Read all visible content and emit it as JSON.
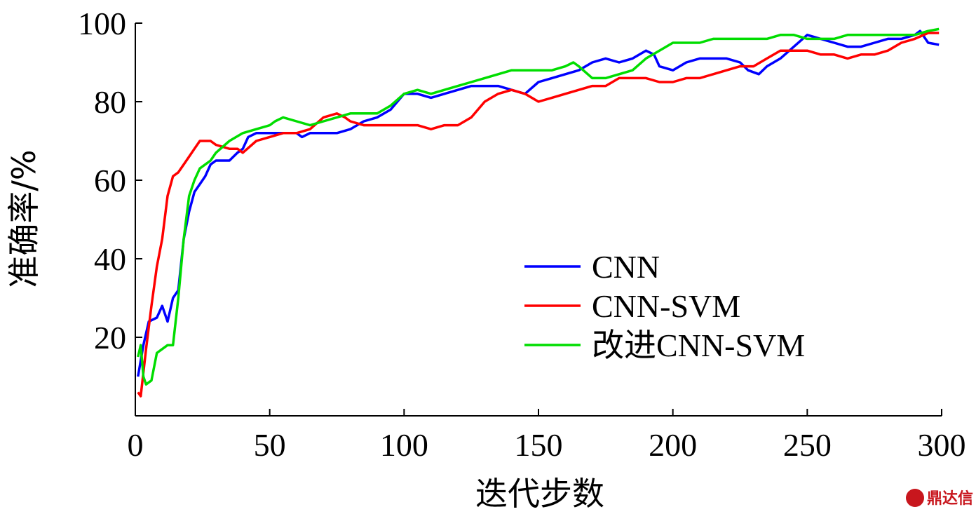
{
  "chart_data": {
    "type": "line",
    "xlabel": "迭代步数",
    "ylabel": "准确率/%",
    "xlim": [
      0,
      300
    ],
    "ylim": [
      0,
      100
    ],
    "xticks": [
      0,
      50,
      100,
      150,
      200,
      250,
      300
    ],
    "yticks": [
      20,
      40,
      60,
      80,
      100
    ],
    "grid": false,
    "legend_position": "bottom-right",
    "series": [
      {
        "name": "CNN",
        "color": "#0000ff",
        "points": [
          [
            1,
            10
          ],
          [
            3,
            18
          ],
          [
            5,
            24
          ],
          [
            8,
            25
          ],
          [
            10,
            28
          ],
          [
            12,
            24
          ],
          [
            14,
            30
          ],
          [
            16,
            32
          ],
          [
            18,
            45
          ],
          [
            20,
            52
          ],
          [
            22,
            57
          ],
          [
            24,
            59
          ],
          [
            26,
            61
          ],
          [
            28,
            64
          ],
          [
            30,
            65
          ],
          [
            35,
            65
          ],
          [
            38,
            67
          ],
          [
            40,
            68
          ],
          [
            42,
            71
          ],
          [
            45,
            72
          ],
          [
            50,
            72
          ],
          [
            55,
            72
          ],
          [
            60,
            72
          ],
          [
            62,
            71
          ],
          [
            65,
            72
          ],
          [
            70,
            72
          ],
          [
            75,
            72
          ],
          [
            80,
            73
          ],
          [
            85,
            75
          ],
          [
            90,
            76
          ],
          [
            95,
            78
          ],
          [
            100,
            82
          ],
          [
            105,
            82
          ],
          [
            110,
            81
          ],
          [
            115,
            82
          ],
          [
            120,
            83
          ],
          [
            125,
            84
          ],
          [
            130,
            84
          ],
          [
            135,
            84
          ],
          [
            140,
            83
          ],
          [
            145,
            82
          ],
          [
            150,
            85
          ],
          [
            155,
            86
          ],
          [
            160,
            87
          ],
          [
            165,
            88
          ],
          [
            170,
            90
          ],
          [
            175,
            91
          ],
          [
            180,
            90
          ],
          [
            185,
            91
          ],
          [
            190,
            93
          ],
          [
            193,
            92
          ],
          [
            195,
            89
          ],
          [
            200,
            88
          ],
          [
            205,
            90
          ],
          [
            210,
            91
          ],
          [
            215,
            91
          ],
          [
            220,
            91
          ],
          [
            225,
            90
          ],
          [
            228,
            88
          ],
          [
            232,
            87
          ],
          [
            235,
            89
          ],
          [
            240,
            91
          ],
          [
            245,
            94
          ],
          [
            250,
            97
          ],
          [
            255,
            96
          ],
          [
            260,
            95
          ],
          [
            265,
            94
          ],
          [
            270,
            94
          ],
          [
            275,
            95
          ],
          [
            280,
            96
          ],
          [
            285,
            96
          ],
          [
            290,
            97
          ],
          [
            292,
            98
          ],
          [
            295,
            95
          ],
          [
            299,
            94.5
          ]
        ]
      },
      {
        "name": "CNN-SVM",
        "color": "#ff0000",
        "points": [
          [
            1,
            6
          ],
          [
            2,
            5
          ],
          [
            4,
            17
          ],
          [
            6,
            28
          ],
          [
            8,
            38
          ],
          [
            10,
            45
          ],
          [
            12,
            56
          ],
          [
            14,
            61
          ],
          [
            16,
            62
          ],
          [
            18,
            64
          ],
          [
            20,
            66
          ],
          [
            22,
            68
          ],
          [
            24,
            70
          ],
          [
            26,
            70
          ],
          [
            28,
            70
          ],
          [
            30,
            69
          ],
          [
            35,
            68
          ],
          [
            38,
            68
          ],
          [
            40,
            67
          ],
          [
            45,
            70
          ],
          [
            50,
            71
          ],
          [
            55,
            72
          ],
          [
            60,
            72
          ],
          [
            65,
            73
          ],
          [
            70,
            76
          ],
          [
            75,
            77
          ],
          [
            78,
            76
          ],
          [
            80,
            75
          ],
          [
            85,
            74
          ],
          [
            90,
            74
          ],
          [
            100,
            74
          ],
          [
            105,
            74
          ],
          [
            110,
            73
          ],
          [
            115,
            74
          ],
          [
            120,
            74
          ],
          [
            125,
            76
          ],
          [
            130,
            80
          ],
          [
            135,
            82
          ],
          [
            140,
            83
          ],
          [
            145,
            82
          ],
          [
            150,
            80
          ],
          [
            155,
            81
          ],
          [
            160,
            82
          ],
          [
            165,
            83
          ],
          [
            170,
            84
          ],
          [
            175,
            84
          ],
          [
            180,
            86
          ],
          [
            185,
            86
          ],
          [
            190,
            86
          ],
          [
            195,
            85
          ],
          [
            200,
            85
          ],
          [
            205,
            86
          ],
          [
            210,
            86
          ],
          [
            215,
            87
          ],
          [
            220,
            88
          ],
          [
            225,
            89
          ],
          [
            230,
            89
          ],
          [
            235,
            91
          ],
          [
            240,
            93
          ],
          [
            245,
            93
          ],
          [
            250,
            93
          ],
          [
            255,
            92
          ],
          [
            260,
            92
          ],
          [
            265,
            91
          ],
          [
            270,
            92
          ],
          [
            275,
            92
          ],
          [
            280,
            93
          ],
          [
            285,
            95
          ],
          [
            290,
            96
          ],
          [
            295,
            97.5
          ],
          [
            299,
            97.5
          ]
        ]
      },
      {
        "name": "改进CNN-SVM",
        "color": "#00dd00",
        "points": [
          [
            1,
            15
          ],
          [
            2,
            18
          ],
          [
            3,
            10
          ],
          [
            4,
            8
          ],
          [
            6,
            9
          ],
          [
            8,
            16
          ],
          [
            10,
            17
          ],
          [
            12,
            18
          ],
          [
            14,
            18
          ],
          [
            16,
            30
          ],
          [
            18,
            45
          ],
          [
            20,
            56
          ],
          [
            22,
            60
          ],
          [
            24,
            63
          ],
          [
            26,
            64
          ],
          [
            28,
            65
          ],
          [
            30,
            67
          ],
          [
            35,
            70
          ],
          [
            40,
            72
          ],
          [
            45,
            73
          ],
          [
            50,
            74
          ],
          [
            52,
            75
          ],
          [
            55,
            76
          ],
          [
            60,
            75
          ],
          [
            65,
            74
          ],
          [
            70,
            75
          ],
          [
            75,
            76
          ],
          [
            80,
            77
          ],
          [
            85,
            77
          ],
          [
            90,
            77
          ],
          [
            95,
            79
          ],
          [
            100,
            82
          ],
          [
            105,
            83
          ],
          [
            110,
            82
          ],
          [
            115,
            83
          ],
          [
            120,
            84
          ],
          [
            125,
            85
          ],
          [
            130,
            86
          ],
          [
            135,
            87
          ],
          [
            140,
            88
          ],
          [
            145,
            88
          ],
          [
            150,
            88
          ],
          [
            155,
            88
          ],
          [
            160,
            89
          ],
          [
            163,
            90
          ],
          [
            165,
            89
          ],
          [
            170,
            86
          ],
          [
            175,
            86
          ],
          [
            180,
            87
          ],
          [
            185,
            88
          ],
          [
            190,
            91
          ],
          [
            195,
            93
          ],
          [
            200,
            95
          ],
          [
            205,
            95
          ],
          [
            210,
            95
          ],
          [
            215,
            96
          ],
          [
            220,
            96
          ],
          [
            225,
            96
          ],
          [
            230,
            96
          ],
          [
            235,
            96
          ],
          [
            240,
            97
          ],
          [
            245,
            97
          ],
          [
            250,
            96
          ],
          [
            255,
            96
          ],
          [
            260,
            96
          ],
          [
            265,
            97
          ],
          [
            270,
            97
          ],
          [
            275,
            97
          ],
          [
            280,
            97
          ],
          [
            285,
            97
          ],
          [
            290,
            97
          ],
          [
            295,
            98
          ],
          [
            299,
            98.5
          ]
        ]
      }
    ]
  },
  "watermark": {
    "text": "鼎达信",
    "color": "#c8161d"
  }
}
